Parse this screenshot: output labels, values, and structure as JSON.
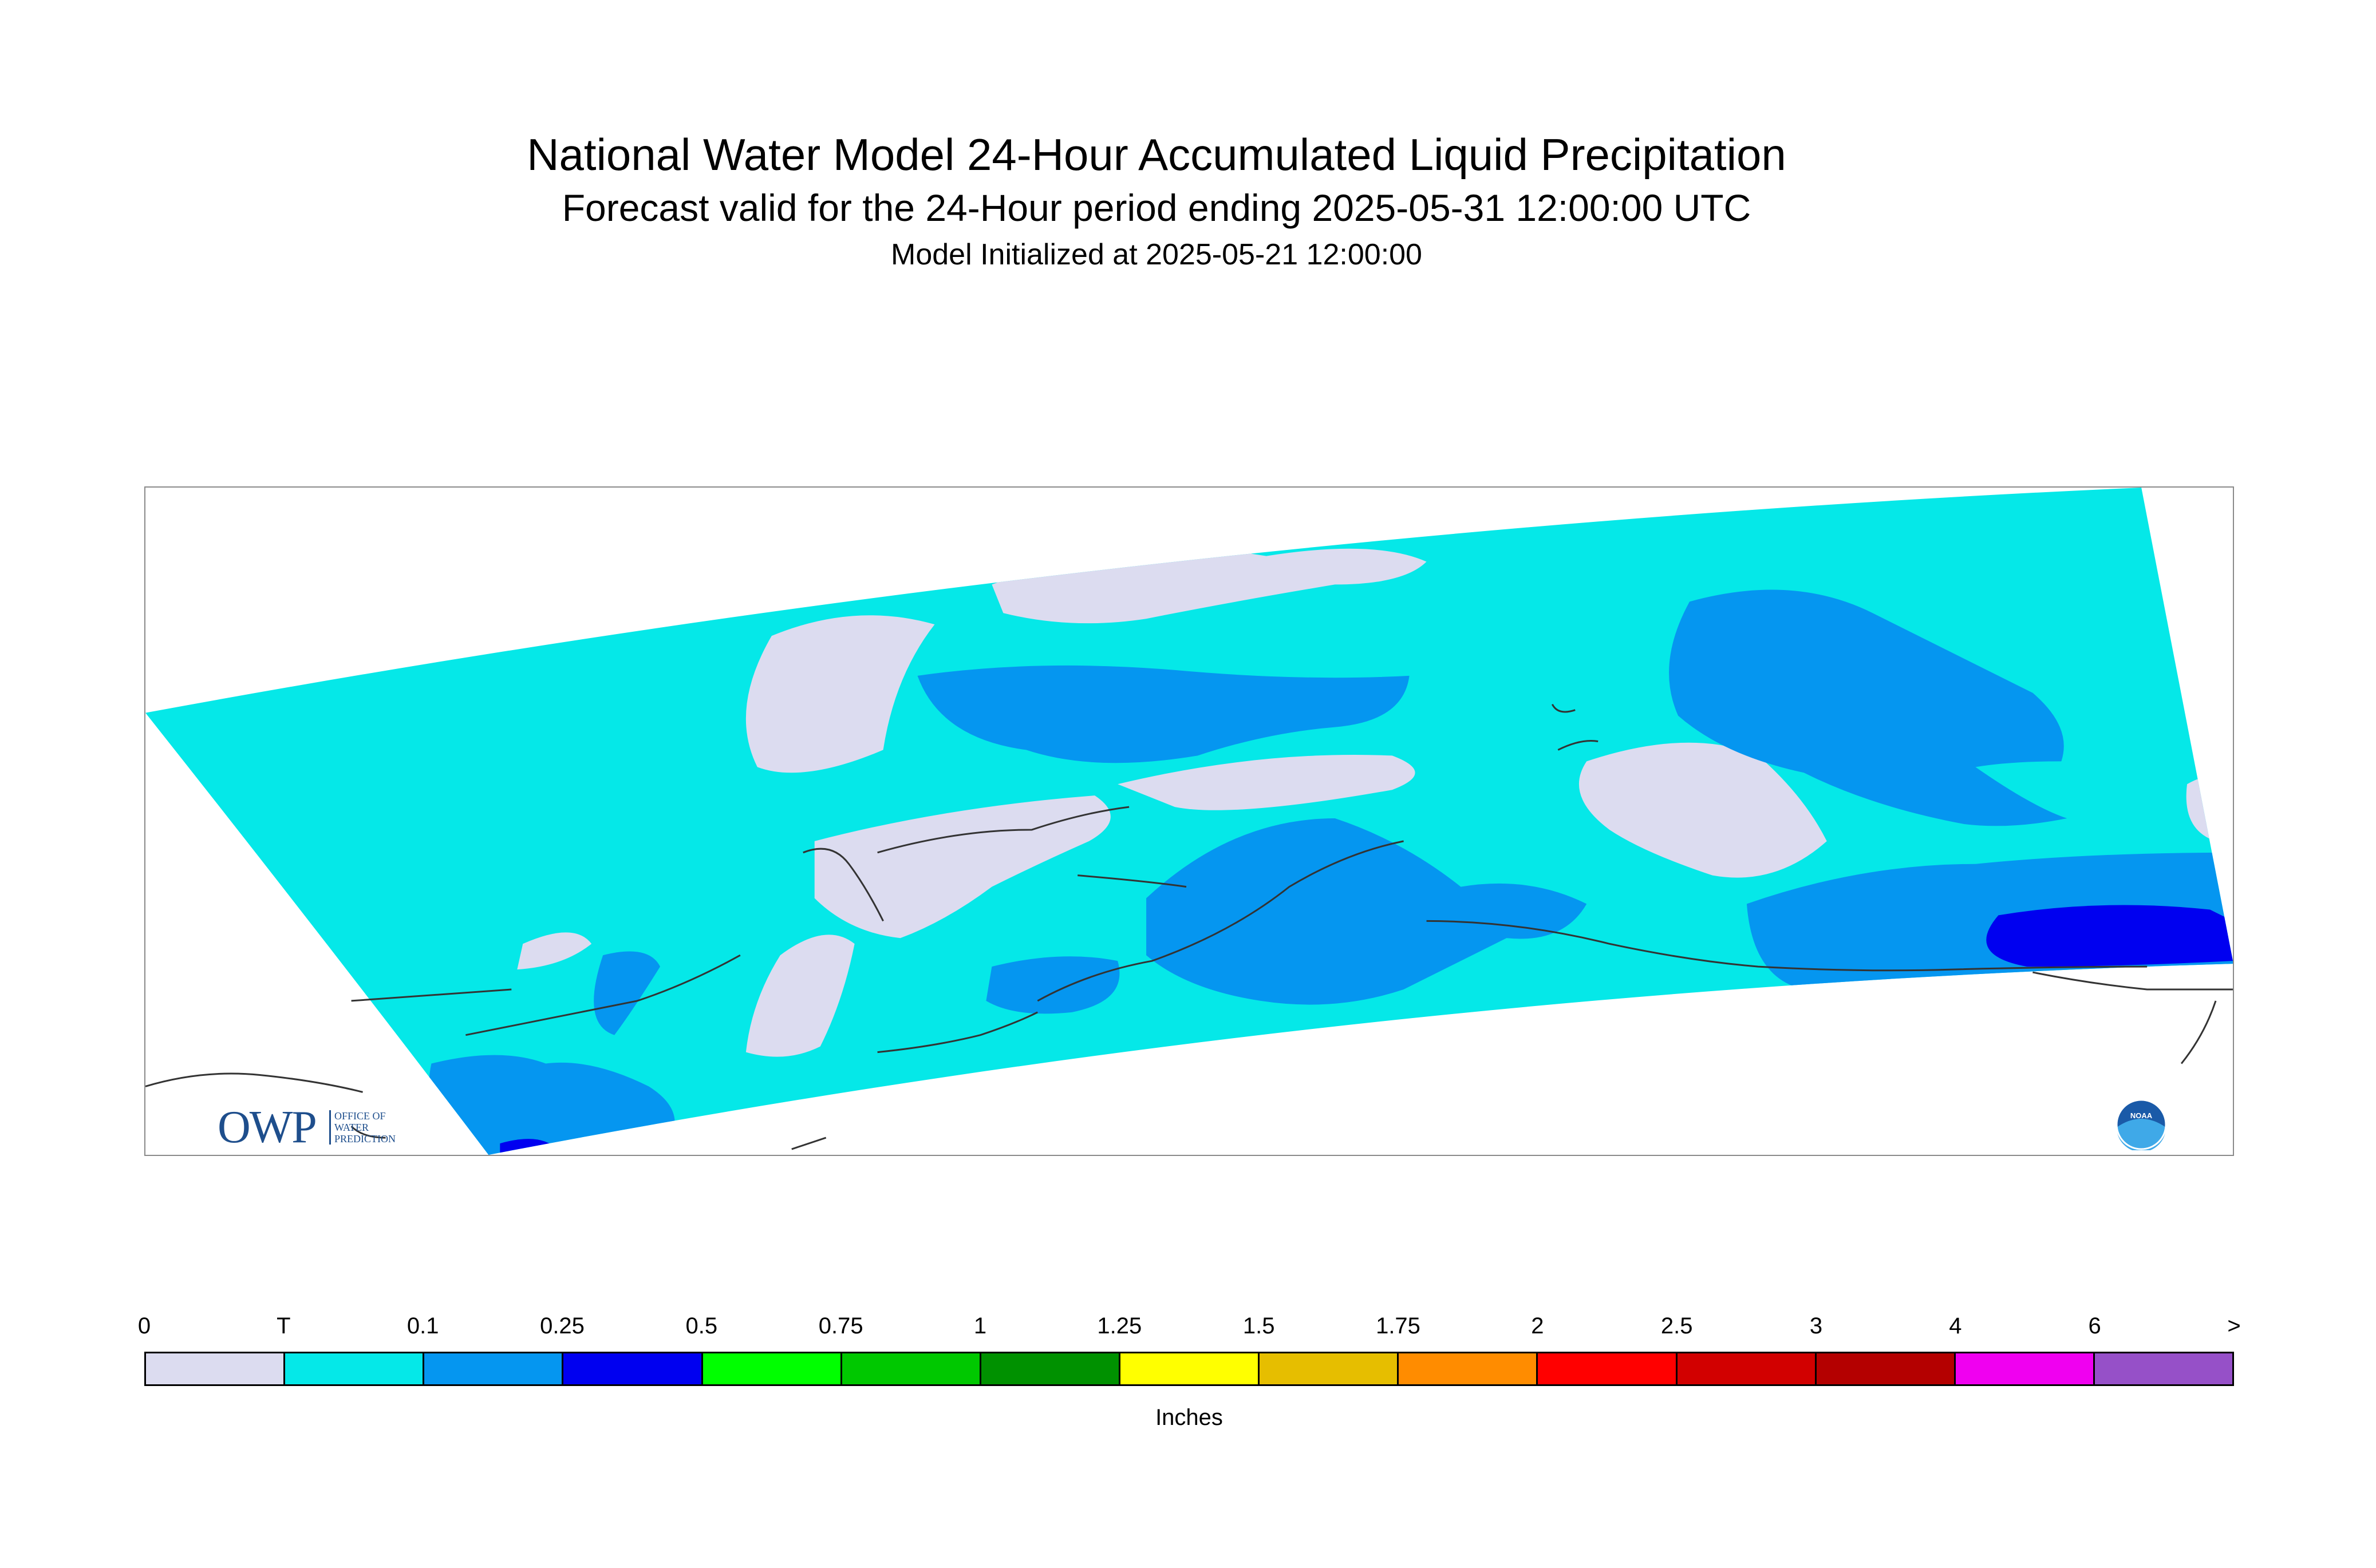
{
  "title": "National Water Model 24-Hour Accumulated Liquid Precipitation",
  "subtitle": "Forecast valid for the 24-Hour period ending 2025-05-31 12:00:00 UTC",
  "init_line": "Model Initialized at 2025-05-21 12:00:00",
  "logos": {
    "owp_letters": "OWP",
    "owp_sub": [
      "OFFICE OF",
      "WATER",
      "PREDICTION"
    ],
    "noaa": "NOAA"
  },
  "legend": {
    "unit": "Inches",
    "tick_labels": [
      "0",
      "T",
      "0.1",
      "0.25",
      "0.5",
      "0.75",
      "1",
      "1.25",
      "1.5",
      "1.75",
      "2",
      "2.5",
      "3",
      "4",
      "6",
      ">"
    ],
    "colors": [
      "#dcdcf0",
      "#05e8e8",
      "#0596f0",
      "#0000f0",
      "#00ff00",
      "#00c800",
      "#009100",
      "#ffff00",
      "#e6be00",
      "#ff8c00",
      "#ff0000",
      "#d20000",
      "#b40000",
      "#f000f0",
      "#9650c8"
    ]
  },
  "map": {
    "background_class_color": "#05e8e8",
    "region_colors": {
      "none": "#dcdcf0",
      "light": "#0596f0",
      "heavy": "#0000f0"
    }
  }
}
